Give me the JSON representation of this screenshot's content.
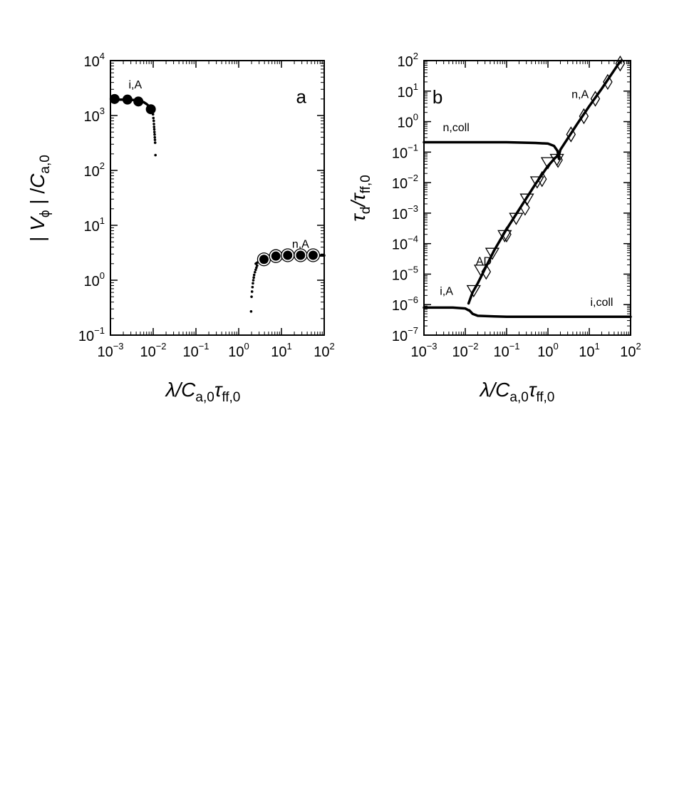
{
  "chart_data": [
    {
      "type": "scatter",
      "panel": "a",
      "xscale": "log",
      "yscale": "log",
      "xlim": [
        0.001,
        100
      ],
      "ylim": [
        0.1,
        10000
      ],
      "xlabel": "λ/Ca,0τff,0",
      "ylabel": "| Vϕ | /Ca,0",
      "xticks": [
        "10^-3",
        "10^-2",
        "10^-1",
        "10^0",
        "10^1",
        "10^2"
      ],
      "yticks": [
        "10^-1",
        "10^0",
        "10^1",
        "10^2",
        "10^3",
        "10^4"
      ],
      "series": [
        {
          "name": "i,A",
          "style": "curve",
          "x": [
            0.00125,
            0.002,
            0.003,
            0.004,
            0.005,
            0.006,
            0.007,
            0.008,
            0.009,
            0.0098
          ],
          "y": [
            1950,
            1950,
            1930,
            1900,
            1840,
            1750,
            1620,
            1480,
            1330,
            1150
          ]
        },
        {
          "name": "",
          "style": "small-dots",
          "x": [
            0.0099,
            0.0101,
            0.0103,
            0.0104,
            0.0105,
            0.0106,
            0.0107,
            0.0108,
            0.0109,
            0.011,
            0.0111,
            0.0113
          ],
          "y": [
            1050,
            900,
            800,
            700,
            620,
            560,
            500,
            450,
            400,
            360,
            320,
            190
          ]
        },
        {
          "name": "",
          "style": "filled-circle",
          "x": [
            0.00125,
            0.0025,
            0.0045,
            0.0088
          ],
          "y": [
            2000,
            1950,
            1800,
            1300
          ]
        },
        {
          "name": "n,A",
          "style": "curve",
          "x": [
            2.5,
            3,
            4,
            5,
            7,
            10,
            20,
            40,
            60,
            100
          ],
          "y": [
            2.0,
            2.2,
            2.4,
            2.55,
            2.65,
            2.75,
            2.8,
            2.82,
            2.83,
            2.83
          ]
        },
        {
          "name": "",
          "style": "small-dots",
          "x": [
            1.95,
            2.0,
            2.05,
            2.1,
            2.15,
            2.2,
            2.25,
            2.3,
            2.4,
            2.5,
            2.6,
            2.7
          ],
          "y": [
            0.27,
            0.5,
            0.62,
            0.75,
            0.88,
            1.0,
            1.12,
            1.25,
            1.4,
            1.55,
            1.7,
            1.85
          ]
        },
        {
          "name": "",
          "style": "ringed-circle",
          "x": [
            3.9,
            7.4,
            14,
            28,
            55
          ],
          "y": [
            2.4,
            2.75,
            2.85,
            2.85,
            2.85
          ]
        }
      ],
      "annotations": [
        {
          "text": "i,A",
          "x": 0.0038,
          "y": 3100
        },
        {
          "text": "n,A",
          "x": 28,
          "y": 3.9
        },
        {
          "text": "a",
          "x": 22,
          "y": 1700
        }
      ]
    },
    {
      "type": "line",
      "panel": "b",
      "xscale": "log",
      "yscale": "log",
      "xlim": [
        0.001,
        100
      ],
      "ylim": [
        1e-07,
        100
      ],
      "xlabel": "λ/Ca,0τff,0",
      "ylabel": "τd/τff,0",
      "xticks": [
        "10^-3",
        "10^-2",
        "10^-1",
        "10^0",
        "10^1",
        "10^2"
      ],
      "yticks": [
        "10^-7",
        "10^-6",
        "10^-5",
        "10^-4",
        "10^-3",
        "10^-2",
        "10^-1",
        "10^0",
        "10^1",
        "10^2"
      ],
      "series": [
        {
          "name": "n,coll",
          "x": [
            0.001,
            0.01,
            0.1,
            0.5,
            1.0,
            1.4,
            1.7,
            1.85
          ],
          "y": [
            0.21,
            0.21,
            0.21,
            0.2,
            0.19,
            0.16,
            0.11,
            0.06
          ]
        },
        {
          "name": "AD",
          "x": [
            0.012,
            0.015,
            0.02,
            0.05,
            0.1,
            0.2,
            0.5,
            1.0,
            1.5,
            1.85,
            2.0,
            5,
            10,
            20,
            50,
            60
          ],
          "y": [
            1.1e-06,
            2.5e-06,
            5e-06,
            6e-05,
            0.0003,
            0.0013,
            0.009,
            0.035,
            0.065,
            0.08,
            0.12,
            0.8,
            3.2,
            12,
            75,
            100
          ]
        },
        {
          "name": "i,A",
          "x": [
            0.001,
            0.005,
            0.01,
            0.012,
            0.0125
          ],
          "y": [
            8e-07,
            8e-07,
            7.5e-07,
            6.5e-07,
            6.5e-07
          ]
        },
        {
          "name": "i,coll",
          "x": [
            0.0125,
            0.015,
            0.02,
            0.05,
            0.1,
            1,
            10,
            100
          ],
          "y": [
            6.5e-07,
            5e-07,
            4.3e-07,
            4.1e-07,
            4e-07,
            4e-07,
            4e-07,
            4e-07
          ]
        },
        {
          "name": "",
          "style": "open-triangle",
          "x": [
            0.016,
            0.024,
            0.045,
            0.09,
            0.17,
            0.31,
            0.55,
            1.0,
            1.65
          ],
          "y": [
            3e-06,
            1.4e-05,
            5e-05,
            0.00019,
            0.0007,
            0.003,
            0.011,
            0.047,
            0.06
          ]
        },
        {
          "name": "",
          "style": "open-diamond",
          "x": [
            0.032,
            0.1,
            0.28,
            0.72,
            1.75,
            3.6,
            7.4,
            14,
            28,
            56
          ],
          "y": [
            1.2e-05,
            0.0002,
            0.0015,
            0.013,
            0.055,
            0.38,
            1.5,
            5.6,
            20,
            80
          ]
        }
      ],
      "annotations": [
        {
          "text": "b",
          "x": 0.0016,
          "y": 4
        },
        {
          "text": "n,coll",
          "x": 0.006,
          "y": 0.48
        },
        {
          "text": "n,A",
          "x": 6,
          "y": 6
        },
        {
          "text": "AD",
          "x": 0.028,
          "y": 2e-05
        },
        {
          "text": "i,A",
          "x": 0.0035,
          "y": 2.1e-06
        },
        {
          "text": "i,coll",
          "x": 20,
          "y": 9e-07
        }
      ]
    }
  ]
}
